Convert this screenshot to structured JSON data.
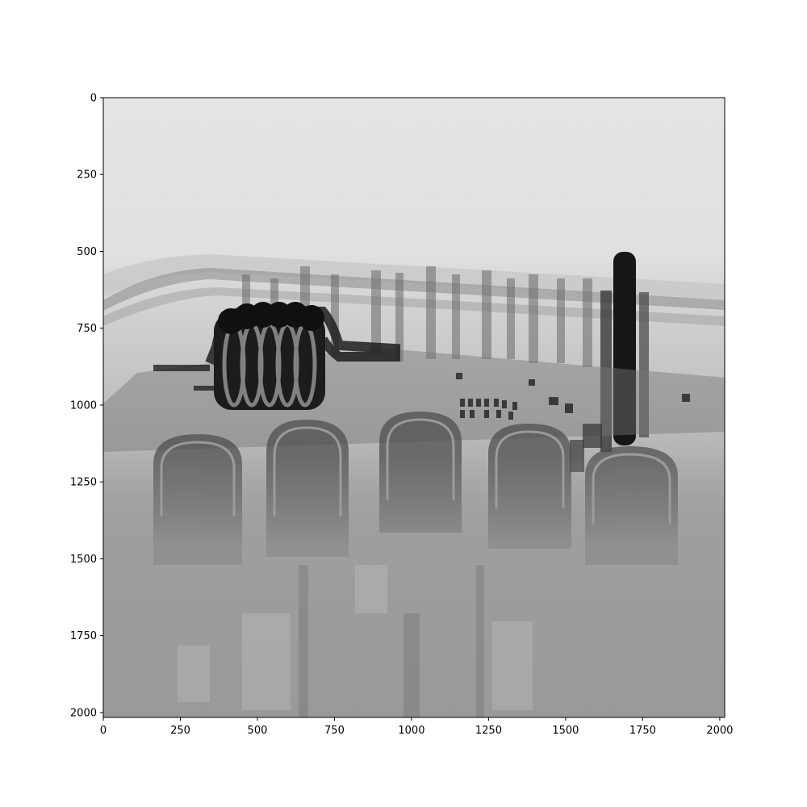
{
  "figure": {
    "image_description_icon": "xray-scan-image",
    "colors": {
      "sky": "#e2e2e2",
      "haze": "#9c9c9c",
      "dark": "#141414",
      "axis": "#000000"
    },
    "x_axis": {
      "range": [
        0,
        2016
      ],
      "ticks": [
        0,
        250,
        500,
        750,
        1000,
        1250,
        1500,
        1750,
        2000
      ],
      "tick_labels": [
        "0",
        "250",
        "500",
        "750",
        "1000",
        "1250",
        "1500",
        "1750",
        "2000"
      ]
    },
    "y_axis": {
      "range": [
        0,
        2016
      ],
      "inverted": true,
      "ticks": [
        0,
        250,
        500,
        750,
        1000,
        1250,
        1500,
        1750,
        2000
      ],
      "tick_labels": [
        "0",
        "250",
        "500",
        "750",
        "1000",
        "1250",
        "1500",
        "1750",
        "2000"
      ]
    }
  }
}
